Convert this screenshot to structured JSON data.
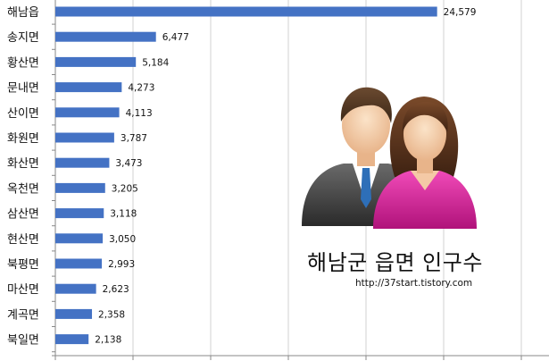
{
  "chart_data": {
    "type": "bar",
    "orientation": "horizontal",
    "title": "해남군 읍면 인구수",
    "xlabel": "",
    "ylabel": "",
    "categories": [
      "해남읍",
      "송지면",
      "황산면",
      "문내면",
      "산이면",
      "화원면",
      "화산면",
      "옥천면",
      "삼산면",
      "현산면",
      "북평면",
      "마산면",
      "계곡면",
      "북일면"
    ],
    "values": [
      24579,
      6477,
      5184,
      4273,
      4113,
      3787,
      3473,
      3205,
      3118,
      3050,
      2993,
      2623,
      2358,
      2138
    ],
    "value_labels": [
      "24,579",
      "6,477",
      "5,184",
      "4,273",
      "4,113",
      "3,787",
      "3,473",
      "3,205",
      "3,118",
      "3,050",
      "2,993",
      "2,623",
      "2,358",
      "2,138"
    ],
    "xlim": [
      0,
      30000
    ],
    "grid": true,
    "legend": "none",
    "bar_color": "#4472C4"
  },
  "annotation": {
    "title": "해남군 읍면 인구수",
    "url": "http://37start.tistory.com"
  },
  "icons": [
    "people-icon"
  ]
}
